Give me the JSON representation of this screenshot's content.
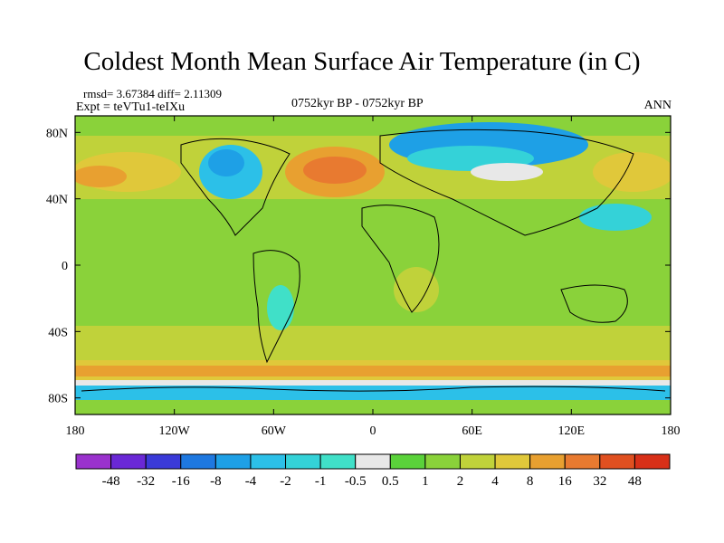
{
  "chart_data": {
    "type": "heatmap",
    "title": "Coldest Month Mean Surface Air Temperature (in C)",
    "stats_text": "rmsd= 3.67384 diff= 2.11309",
    "expt_text": "Expt = teVTu1-teIXu",
    "period_text": "0752kyr BP - 0752kyr BP",
    "season_text": "ANN",
    "x_ticks": [
      "180",
      "120W",
      "60W",
      "0",
      "60E",
      "120E",
      "180"
    ],
    "x_tick_values": [
      -180,
      -120,
      -60,
      0,
      60,
      120,
      180
    ],
    "y_ticks": [
      "80N",
      "40N",
      "0",
      "40S",
      "80S"
    ],
    "y_tick_values": [
      80,
      40,
      0,
      -40,
      -80
    ],
    "xlim": [
      -180,
      180
    ],
    "ylim": [
      -90,
      90
    ],
    "colorbar_levels": [
      "-48",
      "-32",
      "-16",
      "-8",
      "-4",
      "-2",
      "-1",
      "-0.5",
      "0.5",
      "1",
      "2",
      "4",
      "8",
      "16",
      "32",
      "48"
    ],
    "colorbar_colors": [
      "#9a32cd",
      "#6a28d6",
      "#3a3ad8",
      "#1e78e0",
      "#1ea0e6",
      "#2cc0e8",
      "#34d2d8",
      "#40e0c8",
      "#e8e8e8",
      "#5ad23a",
      "#8ad23a",
      "#c0d23a",
      "#e0c83a",
      "#e8a030",
      "#e87a30",
      "#e05020",
      "#d83018"
    ]
  }
}
